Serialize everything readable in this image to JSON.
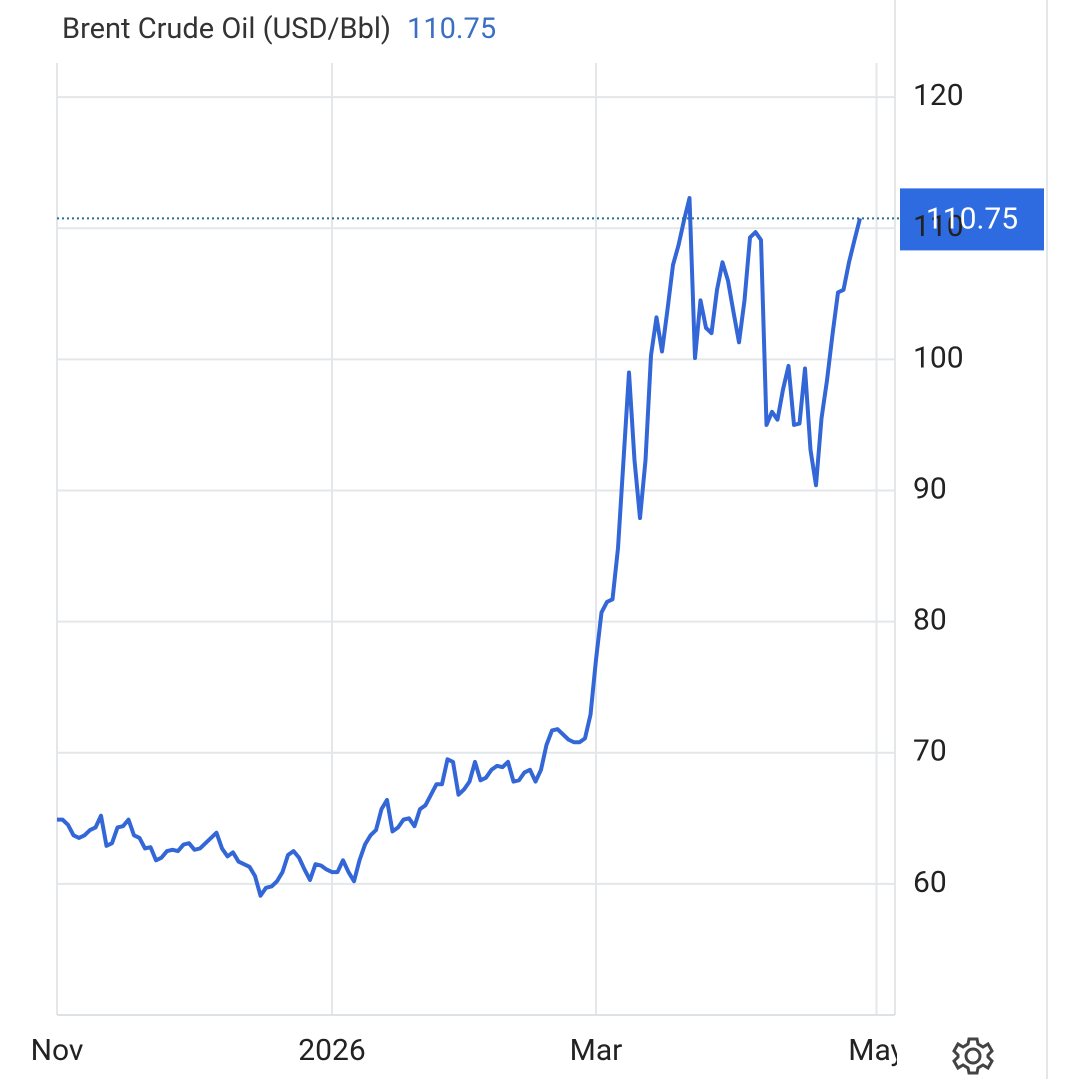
{
  "chart_data": {
    "type": "line",
    "title": "Brent Crude Oil (USD/Bbl)",
    "categories": [
      "Nov",
      null,
      null,
      null,
      null,
      null,
      null,
      null,
      null,
      null,
      null,
      null,
      null,
      null,
      null,
      null,
      null,
      null,
      null,
      null,
      null,
      null,
      null,
      null,
      null,
      null,
      null,
      null,
      null,
      null,
      null,
      null,
      null,
      null,
      null,
      null,
      null,
      null,
      null,
      null,
      null,
      null,
      null,
      null,
      null,
      null,
      null,
      null,
      null,
      null,
      "2026",
      null,
      null,
      null,
      null,
      null,
      null,
      null,
      null,
      null,
      null,
      null,
      null,
      null,
      null,
      null,
      null,
      null,
      null,
      null,
      null,
      null,
      null,
      null,
      null,
      null,
      null,
      null,
      null,
      null,
      null,
      null,
      null,
      null,
      null,
      null,
      null,
      null,
      null,
      null,
      null,
      null,
      null,
      null,
      null,
      null,
      null,
      null,
      "Mar",
      null,
      null,
      null,
      null,
      null,
      null,
      null,
      null,
      null,
      null,
      null,
      null,
      null,
      null,
      null,
      null,
      null,
      null,
      null,
      null,
      null,
      null,
      null,
      null,
      null,
      null,
      null,
      null,
      null,
      null,
      null,
      null,
      null,
      null,
      null,
      null,
      null,
      null,
      null,
      null,
      null,
      null,
      null,
      null,
      null,
      null,
      null,
      null,
      null,
      null,
      "May"
    ],
    "series": [
      {
        "name": "Brent Crude Oil",
        "color": "#3366d6",
        "values": [
          64.9,
          64.9,
          64.5,
          63.7,
          63.5,
          63.7,
          64.1,
          64.3,
          65.2,
          62.9,
          63.1,
          64.3,
          64.4,
          64.9,
          63.7,
          63.5,
          62.7,
          62.8,
          61.8,
          62.0,
          62.5,
          62.6,
          62.5,
          63.0,
          63.1,
          62.6,
          62.7,
          63.1,
          63.5,
          63.9,
          62.7,
          62.1,
          62.4,
          61.7,
          61.5,
          61.3,
          60.6,
          59.1,
          59.7,
          59.8,
          60.2,
          60.9,
          62.2,
          62.5,
          62.0,
          61.1,
          60.3,
          61.5,
          61.4,
          61.1,
          60.9,
          60.9,
          61.8,
          60.9,
          60.2,
          61.8,
          63.0,
          63.7,
          64.1,
          65.7,
          66.4,
          64.0,
          64.3,
          64.9,
          65.0,
          64.4,
          65.7,
          66.0,
          66.8,
          67.6,
          67.6,
          69.5,
          69.3,
          66.8,
          67.2,
          67.8,
          69.3,
          67.9,
          68.1,
          68.7,
          69.0,
          68.9,
          69.3,
          67.8,
          67.9,
          68.5,
          68.7,
          67.8,
          68.7,
          70.6,
          71.7,
          71.8,
          71.4,
          71.0,
          70.8,
          70.8,
          71.1,
          72.9,
          77.1,
          80.7,
          81.5,
          81.7,
          85.6,
          92.3,
          99.0,
          92.3,
          87.9,
          92.3,
          100.3,
          103.2,
          100.6,
          103.8,
          107.2,
          108.7,
          110.6,
          112.3,
          100.1,
          104.5,
          102.4,
          102.0,
          105.3,
          107.4,
          106.0,
          103.6,
          101.3,
          104.5,
          109.3,
          109.7,
          109.1,
          95.0,
          96.0,
          95.4,
          97.7,
          99.5,
          95.0,
          95.1,
          99.3,
          93.1,
          90.4,
          95.5,
          98.4,
          101.9,
          105.1,
          105.3,
          107.4,
          109.1,
          110.75,
          null,
          null,
          null
        ]
      }
    ],
    "ylim": [
      50,
      122.6
    ],
    "yticks": [
      60,
      70,
      80,
      90,
      100,
      110,
      120
    ],
    "grid": true,
    "last_value_color": "#2f6be0"
  }
}
